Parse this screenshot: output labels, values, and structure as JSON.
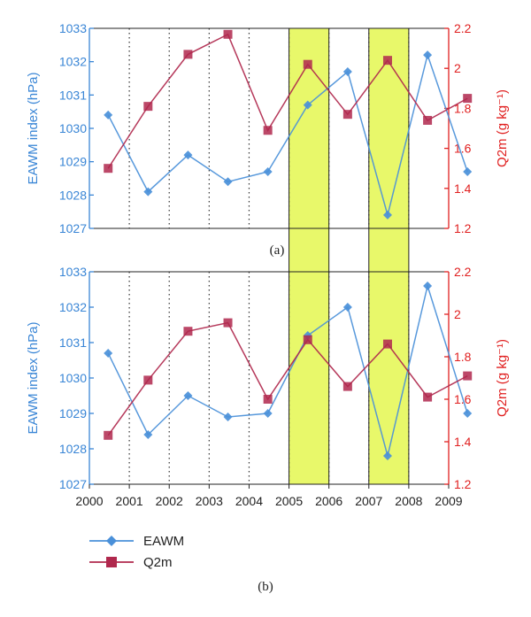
{
  "chart_data": [
    {
      "type": "line",
      "panel_label": "(a)",
      "x_years": [
        "2000",
        "2001",
        "2002",
        "2003",
        "2004",
        "2005",
        "2006",
        "2007",
        "2008",
        "2009"
      ],
      "xlim": [
        2000,
        2009
      ],
      "ylabel_left": "EAWM index (hPa)",
      "ylabel_right": "Q2m (g kg⁻¹)",
      "ylim_left": [
        1027,
        1033
      ],
      "ylim_right": [
        1.2,
        2.2
      ],
      "yticks_left": [
        "1027",
        "1028",
        "1029",
        "1030",
        "1031",
        "1032",
        "1033"
      ],
      "yticks_right": [
        "1.2",
        "1.4",
        "1.6",
        "1.8",
        "2",
        "2.2"
      ],
      "highlight_spans": [
        [
          2005,
          2006
        ],
        [
          2007,
          2008
        ]
      ],
      "series": [
        {
          "name": "EAWM",
          "axis": "left",
          "color": "#4a90d9",
          "x": [
            2000.5,
            2001.5,
            2002.5,
            2003.5,
            2004.5,
            2005.5,
            2006.5,
            2007.5,
            2008.5,
            2009.5
          ],
          "values": [
            1030.4,
            1028.1,
            1029.2,
            1028.4,
            1028.7,
            1030.7,
            1031.7,
            1027.4,
            1032.2,
            1028.7
          ]
        },
        {
          "name": "Q2m",
          "axis": "right",
          "color": "#b0284d",
          "x": [
            2000.5,
            2001.5,
            2002.5,
            2003.5,
            2004.5,
            2005.5,
            2006.5,
            2007.5,
            2008.5,
            2009.5
          ],
          "values": [
            1.5,
            1.81,
            2.07,
            2.17,
            1.69,
            2.02,
            1.77,
            2.04,
            1.74,
            1.85
          ]
        }
      ]
    },
    {
      "type": "line",
      "panel_label": "(b)",
      "x_years": [
        "2000",
        "2001",
        "2002",
        "2003",
        "2004",
        "2005",
        "2006",
        "2007",
        "2008",
        "2009"
      ],
      "xlim": [
        2000,
        2009
      ],
      "ylabel_left": "EAWM index (hPa)",
      "ylabel_right": "Q2m (g kg⁻¹)",
      "ylim_left": [
        1027,
        1033
      ],
      "ylim_right": [
        1.2,
        2.2
      ],
      "yticks_left": [
        "1027",
        "1028",
        "1029",
        "1030",
        "1031",
        "1032",
        "1033"
      ],
      "yticks_right": [
        "1.2",
        "1.4",
        "1.6",
        "1.8",
        "2",
        "2.2"
      ],
      "highlight_spans": [
        [
          2005,
          2006
        ],
        [
          2007,
          2008
        ]
      ],
      "series": [
        {
          "name": "EAWM",
          "axis": "left",
          "color": "#4a90d9",
          "x": [
            2000.5,
            2001.5,
            2002.5,
            2003.5,
            2004.5,
            2005.5,
            2006.5,
            2007.5,
            2008.5,
            2009.5
          ],
          "values": [
            1030.7,
            1028.4,
            1029.5,
            1028.9,
            1029.0,
            1031.2,
            1032.0,
            1027.8,
            1032.6,
            1029.0
          ]
        },
        {
          "name": "Q2m",
          "axis": "right",
          "color": "#b0284d",
          "x": [
            2000.5,
            2001.5,
            2002.5,
            2003.5,
            2004.5,
            2005.5,
            2006.5,
            2007.5,
            2008.5,
            2009.5
          ],
          "values": [
            1.43,
            1.69,
            1.92,
            1.96,
            1.6,
            1.88,
            1.66,
            1.86,
            1.61,
            1.71
          ]
        }
      ]
    }
  ],
  "legend": [
    {
      "label": "EAWM",
      "color": "#4a90d9",
      "marker": "diamond"
    },
    {
      "label": "Q2m",
      "color": "#b0284d",
      "marker": "square"
    }
  ],
  "colors": {
    "left_axis": "#3a86d6",
    "right_axis": "#e02020",
    "highlight_fill": "#e8f86a",
    "highlight_stroke": "#222222"
  }
}
